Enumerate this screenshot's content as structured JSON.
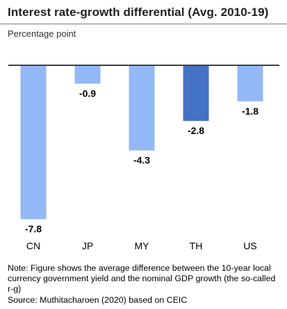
{
  "title": "Interest rate-growth differential (Avg. 2010-19)",
  "subtitle": "Percentage point",
  "note": "Note: Figure shows the average difference between the 10-year local currency government yield and the nominal GDP growth (the so-called r-g)",
  "source": "Source: Muthitacharoen (2020) based on CEIC",
  "chart_data": {
    "type": "bar",
    "categories": [
      "CN",
      "JP",
      "MY",
      "TH",
      "US"
    ],
    "values": [
      -7.8,
      -0.9,
      -4.3,
      -2.8,
      -1.8
    ],
    "data_labels": [
      "-7.8",
      "-0.9",
      "-4.3",
      "-2.8",
      "-1.8"
    ],
    "ylim": [
      -8.2,
      0
    ],
    "grid": false,
    "colors": [
      "#93b8f7",
      "#93b8f7",
      "#93b8f7",
      "#4472c4",
      "#93b8f7"
    ]
  }
}
